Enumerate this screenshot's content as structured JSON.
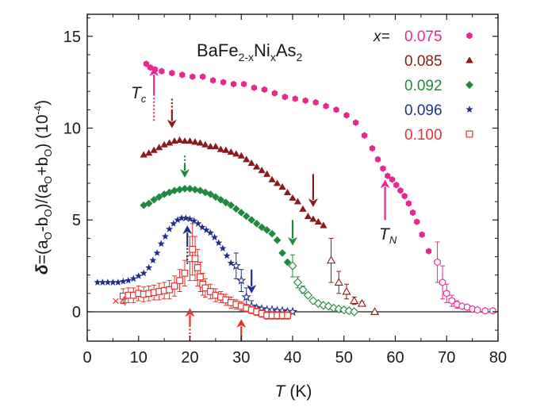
{
  "chart_data": {
    "type": "scatter",
    "title": "BaFe2-xNixAs2",
    "title_parts": {
      "main": "BaFe",
      "sub1": "2-x",
      "mid": "Ni",
      "sub2": "x",
      "end": "As",
      "sub3": "2"
    },
    "xlabel": {
      "italic": "T",
      "rest": " (K)"
    },
    "ylabel": {
      "delta": "δ",
      "expr": "=(a",
      "o1": "O",
      "mid": "-b",
      "o2": "O",
      "mid2": ")/(a",
      "o3": "O",
      "mid3": "+b",
      "o4": "O",
      "end": ")  (10",
      "exp": "-4",
      "close": ")"
    },
    "xlim": [
      0,
      80
    ],
    "ylim": [
      -1.6,
      16.2
    ],
    "xticks": [
      0,
      10,
      20,
      30,
      40,
      50,
      60,
      70,
      80
    ],
    "xtick_labels": [
      "0",
      "10",
      "20",
      "30",
      "40",
      "50",
      "60",
      "70",
      "80"
    ],
    "yticks": [
      0,
      5,
      10,
      15
    ],
    "ytick_labels": [
      "0",
      "5",
      "10",
      "15"
    ],
    "legend_prefix": "x=",
    "series": [
      {
        "name": "0.075",
        "color": "#e8288f",
        "marker": "hexagon",
        "x": [
          11.5,
          12.3,
          13.2,
          14.5,
          16.5,
          18.5,
          20.5,
          22.5,
          24.5,
          26.5,
          28.5,
          30.5,
          32.5,
          34.5,
          36.5,
          38.5,
          40.5,
          42.5,
          44.5,
          46.5,
          48.5,
          50.5,
          52.3,
          54,
          55.5,
          56.6,
          57.6,
          58.5,
          59.4,
          60.2,
          61,
          61.8,
          62.6,
          63.4,
          64.2,
          65.2,
          66.5
        ],
        "y": [
          13.5,
          13.3,
          13.2,
          13.1,
          13.0,
          12.9,
          12.8,
          12.8,
          12.6,
          12.5,
          12.4,
          12.4,
          12.2,
          12.1,
          11.9,
          11.7,
          11.6,
          11.5,
          11.4,
          11.2,
          11.0,
          10.7,
          10.3,
          9.6,
          8.9,
          8.3,
          7.8,
          7.4,
          7.2,
          6.9,
          6.6,
          6.3,
          5.9,
          5.4,
          4.9,
          4.2,
          3.3
        ],
        "open_x": [
          68.2,
          69.2,
          70,
          71,
          72,
          73,
          74,
          75,
          76,
          77.5,
          79
        ],
        "open_y": [
          2.7,
          1.6,
          1.0,
          0.6,
          0.4,
          0.3,
          0.25,
          0.15,
          0.1,
          0.05,
          0.05
        ],
        "open_err": [
          1.1,
          0.9,
          0.5,
          0.3,
          0.2,
          0.1,
          0.1,
          0,
          0,
          0,
          0
        ]
      },
      {
        "name": "0.085",
        "color": "#8b1a1a",
        "marker": "triangle",
        "x": [
          11,
          12,
          13,
          14,
          15,
          16,
          17,
          18,
          19,
          20,
          21,
          22,
          23,
          24,
          25,
          26,
          27,
          28,
          29,
          30,
          31,
          32,
          33,
          34,
          35,
          36,
          37,
          38,
          39,
          40,
          41,
          42,
          43,
          44,
          45,
          46
        ],
        "y": [
          8.55,
          8.65,
          8.8,
          8.95,
          9.1,
          9.2,
          9.3,
          9.35,
          9.3,
          9.3,
          9.25,
          9.2,
          9.1,
          9.0,
          9.0,
          8.85,
          8.8,
          8.7,
          8.6,
          8.5,
          8.3,
          8.1,
          7.9,
          7.7,
          7.5,
          7.2,
          7.0,
          6.8,
          6.5,
          6.2,
          6.0,
          5.6,
          5.2,
          5.05,
          4.9,
          4.7
        ],
        "open_x": [
          47.5,
          49,
          50.5,
          52,
          53.5,
          56
        ],
        "open_y": [
          2.8,
          1.6,
          1.1,
          0.6,
          0.45,
          0
        ],
        "open_err": [
          1.2,
          0.6,
          0.4,
          0.2,
          0.1,
          0
        ]
      },
      {
        "name": "0.092",
        "color": "#1f8a3e",
        "marker": "diamond",
        "x": [
          11,
          12,
          13,
          14,
          15,
          16,
          17,
          18,
          19,
          20,
          21,
          22,
          23,
          24,
          25,
          26,
          27,
          28,
          29,
          30,
          31,
          32,
          33,
          34,
          35,
          36,
          37,
          38,
          39
        ],
        "y": [
          5.8,
          5.9,
          6.1,
          6.25,
          6.4,
          6.5,
          6.6,
          6.65,
          6.7,
          6.7,
          6.65,
          6.6,
          6.5,
          6.4,
          6.25,
          6.1,
          5.95,
          5.8,
          5.6,
          5.4,
          5.2,
          5.0,
          4.8,
          4.6,
          4.45,
          4.25,
          3.9,
          3.2,
          2.7
        ],
        "open_x": [
          40,
          41,
          42,
          43,
          44,
          45,
          46,
          47,
          48,
          49,
          50,
          51,
          52
        ],
        "open_y": [
          2.5,
          1.6,
          1.2,
          0.9,
          0.6,
          0.45,
          0.35,
          0.3,
          0.2,
          0.15,
          0.1,
          0.05,
          0
        ],
        "open_err": [
          0.6,
          0.3,
          0.2,
          0.1,
          0,
          0,
          0,
          0,
          0,
          0,
          0,
          0,
          0
        ]
      },
      {
        "name": "0.096",
        "color": "#1f2f8c",
        "marker": "star",
        "x": [
          2,
          3,
          4,
          5,
          6,
          7,
          8,
          9,
          10,
          11,
          12,
          12.8,
          13.6,
          14.4,
          15.2,
          16,
          16.8,
          17.6,
          18.4,
          19.2,
          20,
          20.8,
          21.6,
          22.4,
          23.2,
          24,
          24.8,
          25.6,
          26.4,
          27.2,
          28
        ],
        "y": [
          1.6,
          1.6,
          1.6,
          1.6,
          1.6,
          1.65,
          1.7,
          1.8,
          1.95,
          2.1,
          2.4,
          2.8,
          3.2,
          3.7,
          4.1,
          4.5,
          4.8,
          5.0,
          5.1,
          5.1,
          5.05,
          4.95,
          4.8,
          4.6,
          4.45,
          4.3,
          4.05,
          3.75,
          3.45,
          3.05,
          2.65
        ],
        "open_x": [
          29,
          30,
          31,
          32,
          33,
          34,
          35,
          36,
          37,
          38,
          39,
          40
        ],
        "open_y": [
          2.5,
          1.7,
          0.8,
          0.3,
          0.2,
          0.15,
          0.1,
          0.1,
          0.05,
          0.05,
          0,
          0
        ],
        "open_err": [
          0.7,
          0.6,
          0.5,
          0.3,
          0.1,
          0,
          0,
          0,
          0,
          0,
          0,
          0
        ]
      },
      {
        "name": "0.100",
        "color": "#e3342f",
        "marker": "square",
        "x": [
          7,
          8,
          9,
          10,
          11,
          12,
          13,
          14,
          15,
          16,
          17,
          18,
          19,
          20,
          20.5,
          21,
          21.5,
          22,
          22.5,
          23,
          24,
          25,
          26,
          27,
          28,
          29,
          30,
          31,
          32,
          33,
          34,
          35,
          36,
          37,
          38,
          39
        ],
        "y": [
          0.85,
          0.9,
          0.9,
          1.0,
          0.95,
          1.0,
          1.05,
          1.1,
          1.15,
          1.2,
          1.4,
          1.7,
          2.1,
          2.9,
          3.4,
          2.9,
          2.4,
          1.9,
          1.5,
          1.3,
          1.1,
          0.9,
          0.8,
          0.65,
          0.5,
          0.4,
          0.3,
          0.2,
          0.1,
          0.0,
          -0.1,
          -0.2,
          -0.2,
          -0.2,
          -0.2,
          -0.2
        ],
        "err": [
          0.4,
          0.4,
          0.4,
          0.4,
          0.4,
          0.4,
          0.4,
          0.45,
          0.45,
          0.5,
          0.55,
          0.6,
          0.7,
          1.2,
          1.4,
          1.2,
          1.0,
          0.8,
          0.6,
          0.5,
          0.4,
          0.35,
          0.3,
          0.3,
          0.3,
          0.25,
          0.25,
          0.2,
          0.2,
          0.2,
          0.2,
          0.2,
          0.2,
          0.2,
          0.2,
          0.2
        ],
        "scale_label": "×4"
      }
    ],
    "annotations": {
      "tc_label": "T",
      "tc_sub": "c",
      "tn_label": "T",
      "tn_sub": "N",
      "arrows": [
        {
          "series": "0.075",
          "x": 13,
          "y_from": 10.4,
          "y_to": 13.3,
          "dir": "up",
          "dotted_tail": true
        },
        {
          "series": "0.075",
          "x": 58,
          "y_from": 5.0,
          "y_to": 7.2,
          "dir": "up",
          "dotted_tail": false
        },
        {
          "series": "0.085",
          "x": 16.5,
          "y_from": 11.6,
          "y_to": 10.0,
          "dir": "down",
          "dotted_tail": true
        },
        {
          "series": "0.085",
          "x": 44,
          "y_from": 7.5,
          "y_to": 5.7,
          "dir": "down",
          "dotted_tail": false
        },
        {
          "series": "0.092",
          "x": 19,
          "y_from": 8.5,
          "y_to": 7.3,
          "dir": "down",
          "dotted_tail": true
        },
        {
          "series": "0.092",
          "x": 40,
          "y_from": 5.0,
          "y_to": 3.6,
          "dir": "down",
          "dotted_tail": false
        },
        {
          "series": "0.096",
          "x": 19.5,
          "y_from": 2.6,
          "y_to": 4.7,
          "dir": "up",
          "dotted_tail": true
        },
        {
          "series": "0.096",
          "x": 32,
          "y_from": 2.3,
          "y_to": 1.0,
          "dir": "down",
          "dotted_tail": false
        },
        {
          "series": "0.100",
          "x": 20,
          "y_from": -1.6,
          "y_to": 0.2,
          "dir": "up",
          "dotted_tail": true
        },
        {
          "series": "0.100",
          "x": 30,
          "y_from": -1.6,
          "y_to": -0.4,
          "dir": "up",
          "dotted_tail": false
        }
      ]
    },
    "zero_line": 0
  }
}
